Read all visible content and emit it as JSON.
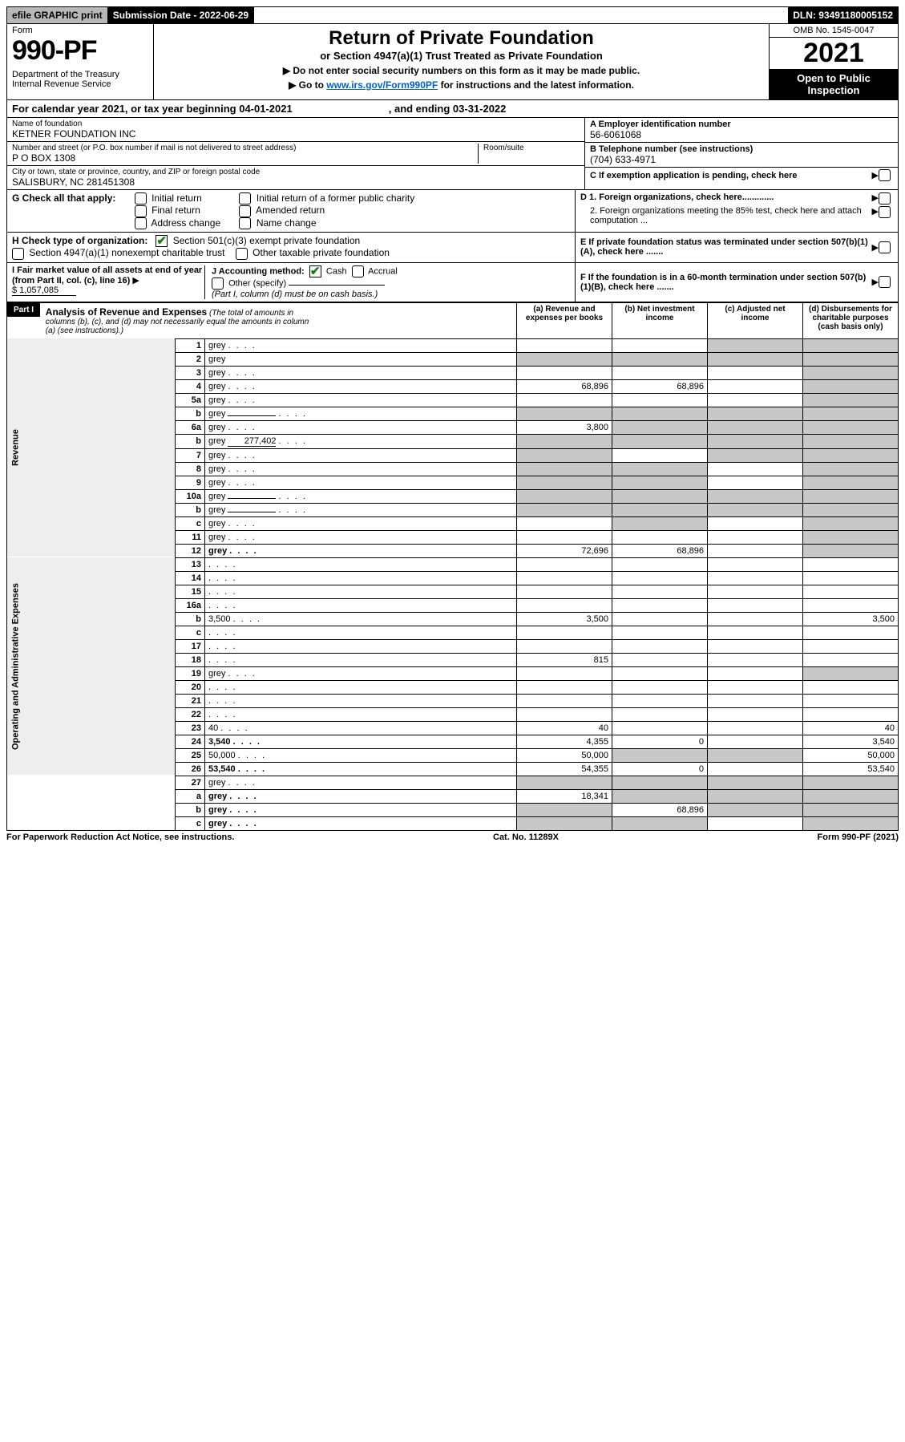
{
  "top": {
    "efile": "efile GRAPHIC print",
    "subdate_label": "Submission Date - ",
    "subdate": "2022-06-29",
    "dln_label": "DLN: ",
    "dln": "93491180005152"
  },
  "header": {
    "form_word": "Form",
    "form_num": "990-PF",
    "dept": "Department of the Treasury\nInternal Revenue Service",
    "title": "Return of Private Foundation",
    "sub1": "or Section 4947(a)(1) Trust Treated as Private Foundation",
    "line1": "▶ Do not enter social security numbers on this form as it may be made public.",
    "line2_pre": "▶ Go to ",
    "line2_link": "www.irs.gov/Form990PF",
    "line2_post": " for instructions and the latest information.",
    "omb": "OMB No. 1545-0047",
    "year": "2021",
    "open": "Open to Public Inspection"
  },
  "cal": {
    "text": "For calendar year 2021, or tax year beginning 04-01-2021",
    "end": ", and ending 03-31-2022"
  },
  "name_block": {
    "name_label": "Name of foundation",
    "name": "KETNER FOUNDATION INC",
    "addr_label": "Number and street (or P.O. box number if mail is not delivered to street address)",
    "addr": "P O BOX 1308",
    "room_label": "Room/suite",
    "city_label": "City or town, state or province, country, and ZIP or foreign postal code",
    "city": "SALISBURY, NC  281451308"
  },
  "right_block": {
    "a_label": "A Employer identification number",
    "a_val": "56-6061068",
    "b_label": "B Telephone number (see instructions)",
    "b_val": "(704) 633-4971",
    "c_label": "C If exemption application is pending, check here",
    "d1": "D 1. Foreign organizations, check here.............",
    "d2": "2. Foreign organizations meeting the 85% test, check here and attach computation ...",
    "e": "E  If private foundation status was terminated under section 507(b)(1)(A), check here .......",
    "f": "F  If the foundation is in a 60-month termination under section 507(b)(1)(B), check here ......."
  },
  "g": {
    "label": "G Check all that apply:",
    "opts": [
      "Initial return",
      "Final return",
      "Address change",
      "Initial return of a former public charity",
      "Amended return",
      "Name change"
    ]
  },
  "h": {
    "label": "H Check type of organization:",
    "opt1": "Section 501(c)(3) exempt private foundation",
    "opt2": "Section 4947(a)(1) nonexempt charitable trust",
    "opt3": "Other taxable private foundation"
  },
  "i": {
    "label": "I Fair market value of all assets at end of year (from Part II, col. (c), line 16)",
    "val": "$  1,057,085"
  },
  "j": {
    "label": "J Accounting method:",
    "cash": "Cash",
    "accrual": "Accrual",
    "other": "Other (specify)",
    "note": "(Part I, column (d) must be on cash basis.)"
  },
  "part1": {
    "label": "Part I",
    "title": "Analysis of Revenue and Expenses",
    "title_sub": " (The total of amounts in columns (b), (c), and (d) may not necessarily equal the amounts in column (a) (see instructions).)",
    "col_a": "(a)   Revenue and expenses per books",
    "col_b": "(b)   Net investment income",
    "col_c": "(c)   Adjusted net income",
    "col_d": "(d)   Disbursements for charitable purposes (cash basis only)"
  },
  "sections": {
    "revenue": "Revenue",
    "opexp": "Operating and Administrative Expenses"
  },
  "rows": [
    {
      "n": "1",
      "d": "grey",
      "a": "",
      "b": "",
      "c": "grey"
    },
    {
      "n": "2",
      "d": "grey",
      "a": "grey",
      "b": "grey",
      "c": "grey",
      "nodots": true
    },
    {
      "n": "3",
      "d": "grey",
      "a": "",
      "b": "",
      "c": ""
    },
    {
      "n": "4",
      "d": "grey",
      "a": "68,896",
      "b": "68,896",
      "c": ""
    },
    {
      "n": "5a",
      "d": "grey",
      "a": "",
      "b": "",
      "c": ""
    },
    {
      "n": "b",
      "d": "grey",
      "a": "grey",
      "b": "grey",
      "c": "grey",
      "inline": true
    },
    {
      "n": "6a",
      "d": "grey",
      "a": "3,800",
      "b": "grey",
      "c": "grey"
    },
    {
      "n": "b",
      "d": "grey",
      "a": "grey",
      "b": "grey",
      "c": "grey",
      "inline": true,
      "inlineval": "277,402"
    },
    {
      "n": "7",
      "d": "grey",
      "a": "grey",
      "b": "",
      "c": "grey"
    },
    {
      "n": "8",
      "d": "grey",
      "a": "grey",
      "b": "grey",
      "c": ""
    },
    {
      "n": "9",
      "d": "grey",
      "a": "grey",
      "b": "grey",
      "c": ""
    },
    {
      "n": "10a",
      "d": "grey",
      "a": "grey",
      "b": "grey",
      "c": "grey",
      "inline": true
    },
    {
      "n": "b",
      "d": "grey",
      "a": "grey",
      "b": "grey",
      "c": "grey",
      "inline": true
    },
    {
      "n": "c",
      "d": "grey",
      "a": "",
      "b": "grey",
      "c": ""
    },
    {
      "n": "11",
      "d": "grey",
      "a": "",
      "b": "",
      "c": ""
    },
    {
      "n": "12",
      "d": "grey",
      "a": "72,696",
      "b": "68,896",
      "c": "",
      "bold": true
    }
  ],
  "rows_exp": [
    {
      "n": "13",
      "d": "",
      "a": "",
      "b": "",
      "c": ""
    },
    {
      "n": "14",
      "d": "",
      "a": "",
      "b": "",
      "c": ""
    },
    {
      "n": "15",
      "d": "",
      "a": "",
      "b": "",
      "c": ""
    },
    {
      "n": "16a",
      "d": "",
      "a": "",
      "b": "",
      "c": ""
    },
    {
      "n": "b",
      "d": "3,500",
      "a": "3,500",
      "b": "",
      "c": ""
    },
    {
      "n": "c",
      "d": "",
      "a": "",
      "b": "",
      "c": ""
    },
    {
      "n": "17",
      "d": "",
      "a": "",
      "b": "",
      "c": ""
    },
    {
      "n": "18",
      "d": "",
      "a": "815",
      "b": "",
      "c": ""
    },
    {
      "n": "19",
      "d": "grey",
      "a": "",
      "b": "",
      "c": ""
    },
    {
      "n": "20",
      "d": "",
      "a": "",
      "b": "",
      "c": ""
    },
    {
      "n": "21",
      "d": "",
      "a": "",
      "b": "",
      "c": ""
    },
    {
      "n": "22",
      "d": "",
      "a": "",
      "b": "",
      "c": ""
    },
    {
      "n": "23",
      "d": "40",
      "a": "40",
      "b": "",
      "c": ""
    },
    {
      "n": "24",
      "d": "3,540",
      "a": "4,355",
      "b": "0",
      "c": "",
      "bold": true
    },
    {
      "n": "25",
      "d": "50,000",
      "a": "50,000",
      "b": "grey",
      "c": "grey"
    },
    {
      "n": "26",
      "d": "53,540",
      "a": "54,355",
      "b": "0",
      "c": "",
      "bold": true
    }
  ],
  "rows_bot": [
    {
      "n": "27",
      "d": "grey",
      "a": "grey",
      "b": "grey",
      "c": "grey"
    },
    {
      "n": "a",
      "d": "grey",
      "a": "18,341",
      "b": "grey",
      "c": "grey",
      "bold": true
    },
    {
      "n": "b",
      "d": "grey",
      "a": "grey",
      "b": "68,896",
      "c": "grey",
      "bold": true
    },
    {
      "n": "c",
      "d": "grey",
      "a": "grey",
      "b": "grey",
      "c": "",
      "bold": true
    }
  ],
  "footer": {
    "left": "For Paperwork Reduction Act Notice, see instructions.",
    "mid": "Cat. No. 11289X",
    "right": "Form 990-PF (2021)"
  },
  "colors": {
    "black": "#000000",
    "grey": "#c8c8c8",
    "link": "#0060c0",
    "green": "#1a7a1a"
  }
}
